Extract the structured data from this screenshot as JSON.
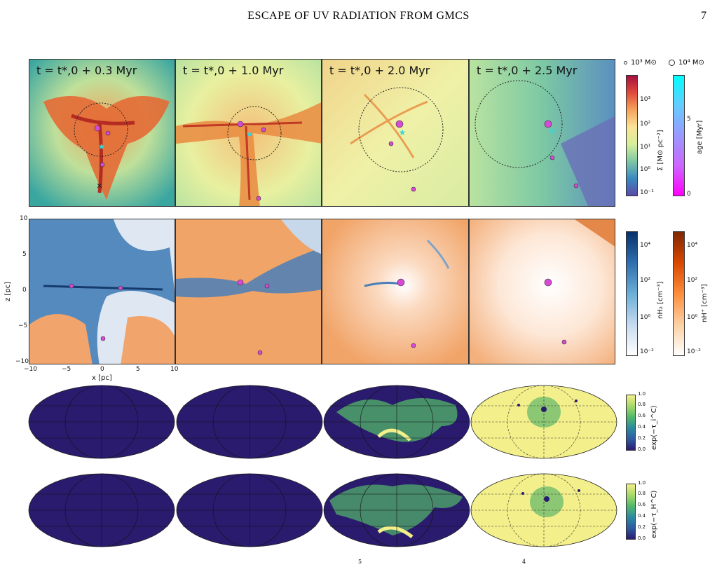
{
  "header": {
    "title": "ESCAPE OF UV RADIATION FROM GMCS",
    "page_number": "7"
  },
  "row1": {
    "panel_labels": [
      "t = t*,0 + 0.3 Myr",
      "t = t*,0 + 1.0 Myr",
      "t = t*,0 + 2.0 Myr",
      "t = t*,0 + 2.5 Myr"
    ],
    "legend": {
      "small": "10³ M⊙",
      "large": "10⁴ M⊙"
    },
    "cb_surface": {
      "label": "Σ [M⊙ pc⁻²]",
      "ticks": [
        "10³",
        "10²",
        "10¹",
        "10⁰",
        "10⁻¹"
      ]
    },
    "cb_age": {
      "label": "age [Myr]",
      "ticks": [
        "5",
        "0"
      ]
    }
  },
  "row2": {
    "yaxis": {
      "label": "z [pc]",
      "ticks": [
        "10",
        "5",
        "0",
        "−5",
        "−10"
      ]
    },
    "xaxis": {
      "label": "x [pc]",
      "ticks": [
        "−10",
        "−5",
        "0",
        "5",
        "10"
      ]
    },
    "cb_h2": {
      "label": "nH₂ [cm⁻³]",
      "ticks": [
        "10⁴",
        "10²",
        "10⁰",
        "10⁻²"
      ]
    },
    "cb_hplus": {
      "label": "nH⁺ [cm⁻³]",
      "ticks": [
        "10⁴",
        "10²",
        "10⁰",
        "10⁻²"
      ]
    }
  },
  "row3": {
    "cb": {
      "label": "exp(−τ_i^C)",
      "ticks": [
        "1.0",
        "0.8",
        "0.6",
        "0.4",
        "0.2",
        "0.0"
      ]
    }
  },
  "row4": {
    "cb": {
      "label": "exp(−τ_H^C)",
      "ticks": [
        "1.0",
        "0.8",
        "0.6",
        "0.4",
        "0.2",
        "0.0"
      ]
    }
  },
  "footer": {
    "fragment_left": "5",
    "fragment_right": "4"
  },
  "colors": {
    "dark_blue": "#2a1b6e",
    "yellow": "#f3ef8a",
    "green": "#52b86a",
    "orange": "#e98a3f",
    "cyan": "#3ad6d6",
    "magenta": "#d64ad6"
  }
}
